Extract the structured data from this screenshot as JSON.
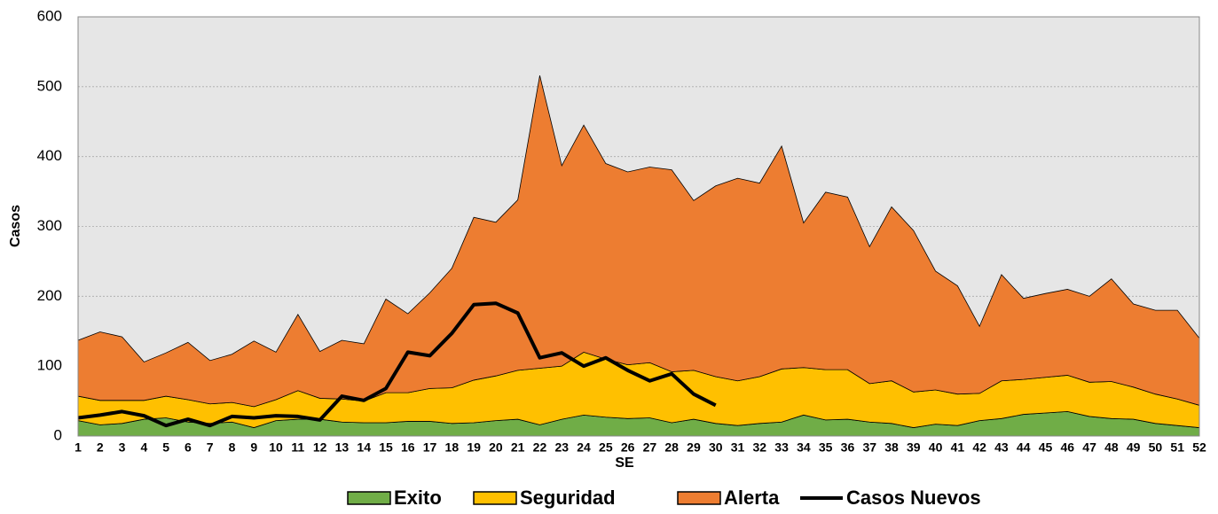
{
  "chart_data": {
    "type": "stacked_area",
    "x_label": "SE",
    "y_label": "Casos",
    "categories": [
      "1",
      "2",
      "3",
      "4",
      "5",
      "6",
      "7",
      "8",
      "9",
      "10",
      "11",
      "12",
      "13",
      "14",
      "15",
      "16",
      "17",
      "18",
      "19",
      "20",
      "21",
      "22",
      "23",
      "24",
      "25",
      "26",
      "27",
      "28",
      "29",
      "30",
      "31",
      "32",
      "33",
      "34",
      "35",
      "36",
      "37",
      "38",
      "39",
      "40",
      "41",
      "42",
      "43",
      "44",
      "45",
      "46",
      "47",
      "48",
      "49",
      "50",
      "51",
      "52"
    ],
    "ylim": [
      0,
      600
    ],
    "yticks": [
      0,
      100,
      200,
      300,
      400,
      500,
      600
    ],
    "grid": true,
    "series": [
      {
        "name": "Exito",
        "color": "#70ad47",
        "kind": "area",
        "values": [
          22,
          16,
          18,
          24,
          26,
          20,
          18,
          20,
          12,
          22,
          24,
          24,
          20,
          19,
          19,
          21,
          21,
          18,
          19,
          22,
          24,
          16,
          24,
          30,
          27,
          25,
          26,
          19,
          24,
          18,
          15,
          18,
          20,
          30,
          23,
          24,
          20,
          18,
          12,
          17,
          15,
          22,
          25,
          31,
          33,
          35,
          28,
          25,
          24,
          18,
          15,
          12
        ]
      },
      {
        "name": "Seguridad",
        "color": "#ffc000",
        "kind": "area",
        "values": [
          35,
          35,
          33,
          27,
          31,
          32,
          28,
          28,
          30,
          30,
          41,
          30,
          33,
          31,
          43,
          41,
          47,
          51,
          61,
          64,
          70,
          81,
          76,
          90,
          83,
          77,
          79,
          73,
          70,
          67,
          64,
          67,
          76,
          68,
          72,
          71,
          55,
          61,
          51,
          49,
          45,
          39,
          54,
          50,
          51,
          52,
          49,
          53,
          46,
          42,
          38,
          32
        ]
      },
      {
        "name": "Alerta",
        "color": "#ed7d31",
        "kind": "area",
        "values": [
          80,
          98,
          91,
          55,
          62,
          82,
          62,
          69,
          94,
          68,
          109,
          67,
          84,
          82,
          134,
          113,
          137,
          171,
          233,
          220,
          244,
          419,
          287,
          325,
          280,
          276,
          280,
          289,
          243,
          273,
          290,
          277,
          319,
          207,
          254,
          247,
          196,
          249,
          231,
          170,
          155,
          96,
          152,
          116,
          120,
          123,
          123,
          147,
          119,
          120,
          127,
          96
        ]
      },
      {
        "name": "Casos Nuevos",
        "color": "#000000",
        "kind": "line",
        "values": [
          26,
          30,
          35,
          29,
          15,
          24,
          15,
          28,
          26,
          29,
          28,
          23,
          57,
          51,
          68,
          120,
          115,
          147,
          188,
          190,
          176,
          112,
          119,
          100,
          112,
          94,
          79,
          89,
          60,
          44,
          null,
          null,
          null,
          null,
          null,
          null,
          null,
          null,
          null,
          null,
          null,
          null,
          null,
          null,
          null,
          null,
          null,
          null,
          null,
          null,
          null,
          null
        ]
      }
    ]
  }
}
